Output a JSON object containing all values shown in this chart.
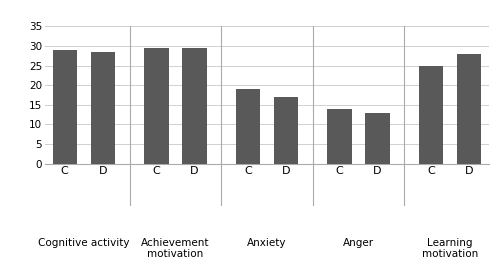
{
  "groups": [
    {
      "label": "Cognitive activity",
      "C": 29,
      "D": 28.5
    },
    {
      "label": "Achievement\nmotivation",
      "C": 29.5,
      "D": 29.5
    },
    {
      "label": "Anxiety",
      "C": 19,
      "D": 17
    },
    {
      "label": "Anger",
      "C": 14,
      "D": 13
    },
    {
      "label": "Learning\nmotivation",
      "C": 25,
      "D": 28
    }
  ],
  "bar_color": "#595959",
  "bar_width": 0.32,
  "ylim": [
    0,
    35
  ],
  "yticks": [
    0,
    5,
    10,
    15,
    20,
    25,
    30,
    35
  ],
  "background_color": "#ffffff",
  "grid_color": "#d0d0d0",
  "tick_fontsize": 7.5,
  "label_fontsize": 7.5,
  "cd_fontsize": 8
}
